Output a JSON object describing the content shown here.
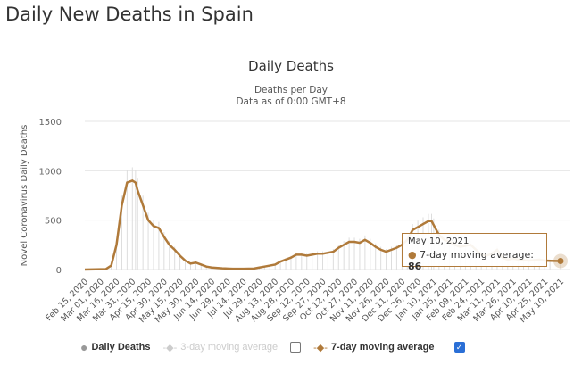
{
  "page_title": "Daily New Deaths in Spain",
  "chart_data": {
    "type": "line",
    "title": "Daily Deaths",
    "subtitle": [
      "Deaths per Day",
      "Data as of 0:00 GMT+8"
    ],
    "ylabel": "Novel Coronavirus Daily Deaths",
    "xlabel": "",
    "ylim": [
      0,
      1500
    ],
    "yticks": [
      0,
      500,
      1000,
      1500
    ],
    "grid": true,
    "start_date": "Feb 15, 2020",
    "xticks": [
      "Feb 15, 2020",
      "Mar 01, 2020",
      "Mar 16, 2020",
      "Mar 31, 2020",
      "Apr 15, 2020",
      "Apr 30, 2020",
      "May 15, 2020",
      "May 30, 2020",
      "Jun 14, 2020",
      "Jun 29, 2020",
      "Jul 14, 2020",
      "Jul 29, 2020",
      "Aug 13, 2020",
      "Aug 28, 2020",
      "Sep 12, 2020",
      "Sep 27, 2020",
      "Oct 12, 2020",
      "Oct 27, 2020",
      "Nov 11, 2020",
      "Nov 26, 2020",
      "Dec 11, 2020",
      "Dec 26, 2020",
      "Jan 10, 2021",
      "Jan 25, 2021",
      "Feb 09, 2021",
      "Feb 24, 2021",
      "Mar 11, 2021",
      "Mar 26, 2021",
      "Apr 10, 2021",
      "Apr 25, 2021",
      "May 10, 2021"
    ],
    "series": [
      {
        "name": "7-day moving average",
        "color": "#b07a3a",
        "points": [
          [
            0,
            0
          ],
          [
            10,
            2
          ],
          [
            20,
            5
          ],
          [
            25,
            40
          ],
          [
            30,
            250
          ],
          [
            35,
            650
          ],
          [
            40,
            880
          ],
          [
            45,
            900
          ],
          [
            48,
            880
          ],
          [
            50,
            800
          ],
          [
            55,
            650
          ],
          [
            60,
            500
          ],
          [
            65,
            440
          ],
          [
            70,
            420
          ],
          [
            75,
            330
          ],
          [
            80,
            250
          ],
          [
            85,
            200
          ],
          [
            90,
            140
          ],
          [
            95,
            90
          ],
          [
            100,
            60
          ],
          [
            105,
            70
          ],
          [
            110,
            50
          ],
          [
            115,
            30
          ],
          [
            120,
            20
          ],
          [
            130,
            12
          ],
          [
            140,
            8
          ],
          [
            150,
            8
          ],
          [
            160,
            10
          ],
          [
            165,
            20
          ],
          [
            170,
            30
          ],
          [
            175,
            40
          ],
          [
            180,
            50
          ],
          [
            185,
            80
          ],
          [
            190,
            100
          ],
          [
            195,
            120
          ],
          [
            200,
            150
          ],
          [
            205,
            150
          ],
          [
            210,
            140
          ],
          [
            215,
            150
          ],
          [
            220,
            160
          ],
          [
            225,
            160
          ],
          [
            230,
            170
          ],
          [
            235,
            180
          ],
          [
            240,
            220
          ],
          [
            245,
            250
          ],
          [
            250,
            280
          ],
          [
            255,
            280
          ],
          [
            260,
            270
          ],
          [
            265,
            300
          ],
          [
            270,
            270
          ],
          [
            275,
            230
          ],
          [
            280,
            200
          ],
          [
            285,
            180
          ],
          [
            290,
            200
          ],
          [
            295,
            220
          ],
          [
            300,
            250
          ],
          [
            305,
            300
          ],
          [
            310,
            400
          ],
          [
            315,
            430
          ],
          [
            320,
            460
          ],
          [
            325,
            490
          ],
          [
            328,
            490
          ],
          [
            330,
            450
          ],
          [
            335,
            350
          ],
          [
            340,
            300
          ],
          [
            345,
            280
          ],
          [
            350,
            250
          ],
          [
            355,
            230
          ],
          [
            360,
            240
          ],
          [
            365,
            250
          ],
          [
            370,
            200
          ],
          [
            375,
            150
          ],
          [
            380,
            140
          ],
          [
            385,
            160
          ],
          [
            390,
            200
          ],
          [
            395,
            120
          ],
          [
            400,
            100
          ],
          [
            405,
            110
          ],
          [
            410,
            100
          ],
          [
            415,
            95
          ],
          [
            420,
            90
          ],
          [
            425,
            95
          ],
          [
            430,
            100
          ],
          [
            435,
            90
          ],
          [
            440,
            88
          ],
          [
            450,
            86
          ]
        ]
      }
    ]
  },
  "tooltip": {
    "date": "May 10, 2021",
    "label": "7-day moving average:",
    "value": "86"
  },
  "legend": {
    "daily": "Daily Deaths",
    "avg3": "3-day moving average",
    "avg7": "7-day moving average",
    "avg3_checked": false,
    "avg7_checked": true
  }
}
